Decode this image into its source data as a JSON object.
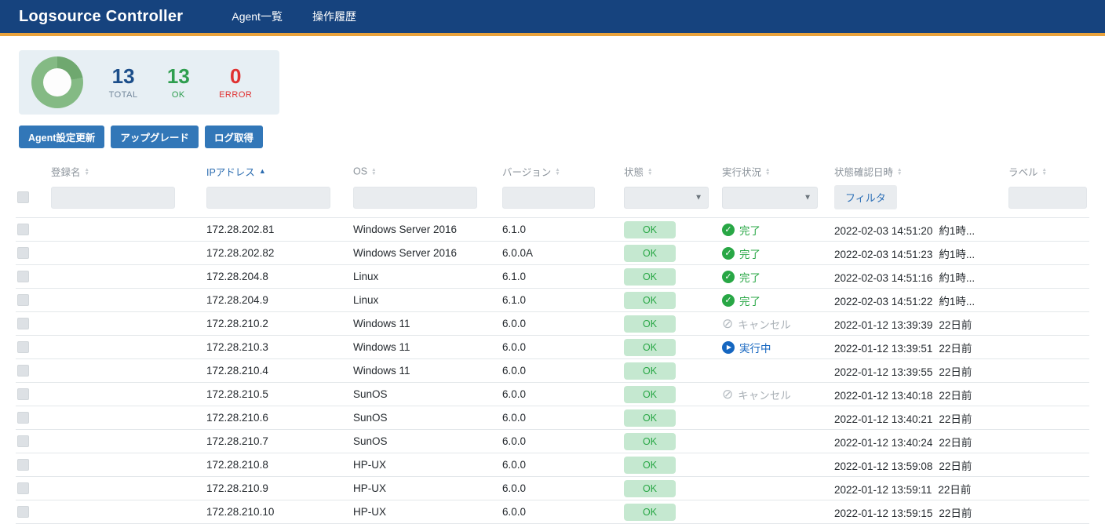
{
  "navbar": {
    "brand": "Logsource Controller",
    "items": [
      {
        "label": "Agent一覧"
      },
      {
        "label": "操作履歴"
      }
    ]
  },
  "summary": {
    "total": {
      "value": "13",
      "label": "TOTAL"
    },
    "ok": {
      "value": "13",
      "label": "OK"
    },
    "error": {
      "value": "0",
      "label": "ERROR"
    }
  },
  "toolbar": {
    "buttons": [
      "Agent設定更新",
      "アップグレード",
      "ログ取得"
    ]
  },
  "table": {
    "columns": [
      "登録名",
      "IPアドレス",
      "OS",
      "バージョン",
      "状態",
      "実行状況",
      "状態確認日時",
      "ラベル"
    ],
    "sorted_column": "IPアドレス",
    "sort_direction": "asc",
    "filter": {
      "date_button_label": "フィルタ"
    },
    "rows": [
      {
        "name": "",
        "ip": "172.28.202.81",
        "os": "Windows Server 2016",
        "version": "6.1.0",
        "status": "OK",
        "exec_type": "done",
        "exec_label": "完了",
        "checked_at": "2022-02-03 14:51:20",
        "relative": "約1時...",
        "label": ""
      },
      {
        "name": "",
        "ip": "172.28.202.82",
        "os": "Windows Server 2016",
        "version": "6.0.0A",
        "status": "OK",
        "exec_type": "done",
        "exec_label": "完了",
        "checked_at": "2022-02-03 14:51:23",
        "relative": "約1時...",
        "label": ""
      },
      {
        "name": "",
        "ip": "172.28.204.8",
        "os": "Linux",
        "version": "6.1.0",
        "status": "OK",
        "exec_type": "done",
        "exec_label": "完了",
        "checked_at": "2022-02-03 14:51:16",
        "relative": "約1時...",
        "label": ""
      },
      {
        "name": "",
        "ip": "172.28.204.9",
        "os": "Linux",
        "version": "6.1.0",
        "status": "OK",
        "exec_type": "done",
        "exec_label": "完了",
        "checked_at": "2022-02-03 14:51:22",
        "relative": "約1時...",
        "label": ""
      },
      {
        "name": "",
        "ip": "172.28.210.2",
        "os": "Windows 11",
        "version": "6.0.0",
        "status": "OK",
        "exec_type": "cancel",
        "exec_label": "キャンセル",
        "checked_at": "2022-01-12 13:39:39",
        "relative": "22日前",
        "label": ""
      },
      {
        "name": "",
        "ip": "172.28.210.3",
        "os": "Windows 11",
        "version": "6.0.0",
        "status": "OK",
        "exec_type": "running",
        "exec_label": "実行中",
        "checked_at": "2022-01-12 13:39:51",
        "relative": "22日前",
        "label": ""
      },
      {
        "name": "",
        "ip": "172.28.210.4",
        "os": "Windows 11",
        "version": "6.0.0",
        "status": "OK",
        "exec_type": "none",
        "exec_label": "",
        "checked_at": "2022-01-12 13:39:55",
        "relative": "22日前",
        "label": ""
      },
      {
        "name": "",
        "ip": "172.28.210.5",
        "os": "SunOS",
        "version": "6.0.0",
        "status": "OK",
        "exec_type": "cancel",
        "exec_label": "キャンセル",
        "checked_at": "2022-01-12 13:40:18",
        "relative": "22日前",
        "label": ""
      },
      {
        "name": "",
        "ip": "172.28.210.6",
        "os": "SunOS",
        "version": "6.0.0",
        "status": "OK",
        "exec_type": "none",
        "exec_label": "",
        "checked_at": "2022-01-12 13:40:21",
        "relative": "22日前",
        "label": ""
      },
      {
        "name": "",
        "ip": "172.28.210.7",
        "os": "SunOS",
        "version": "6.0.0",
        "status": "OK",
        "exec_type": "none",
        "exec_label": "",
        "checked_at": "2022-01-12 13:40:24",
        "relative": "22日前",
        "label": ""
      },
      {
        "name": "",
        "ip": "172.28.210.8",
        "os": "HP-UX",
        "version": "6.0.0",
        "status": "OK",
        "exec_type": "none",
        "exec_label": "",
        "checked_at": "2022-01-12 13:59:08",
        "relative": "22日前",
        "label": ""
      },
      {
        "name": "",
        "ip": "172.28.210.9",
        "os": "HP-UX",
        "version": "6.0.0",
        "status": "OK",
        "exec_type": "none",
        "exec_label": "",
        "checked_at": "2022-01-12 13:59:11",
        "relative": "22日前",
        "label": ""
      },
      {
        "name": "",
        "ip": "172.28.210.10",
        "os": "HP-UX",
        "version": "6.0.0",
        "status": "OK",
        "exec_type": "none",
        "exec_label": "",
        "checked_at": "2022-01-12 13:59:15",
        "relative": "22日前",
        "label": ""
      }
    ]
  },
  "colors": {
    "navbar_bg": "#16437E",
    "accent_orange": "#E9A23B",
    "primary_blue": "#3277B8",
    "ok_green": "#28A745",
    "badge_bg": "#C5E8D0",
    "error_red": "#E03131",
    "running_blue": "#1566C0",
    "cancel_gray": "#AAB1B7",
    "donut_green": "#84BA84"
  }
}
